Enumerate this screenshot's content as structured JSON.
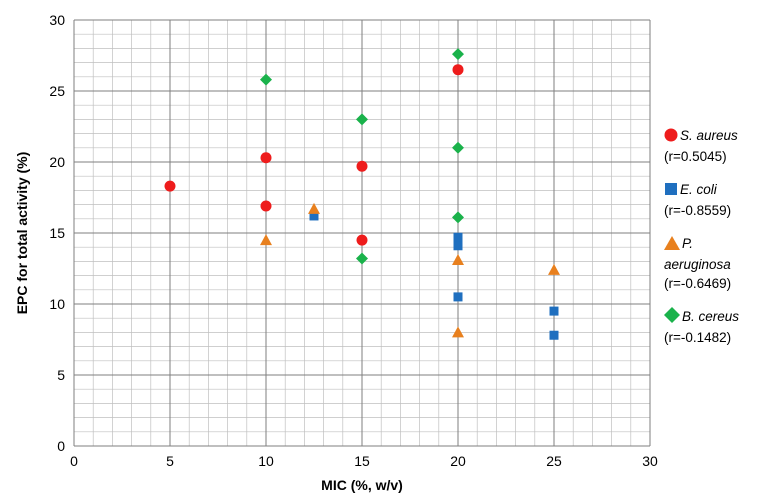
{
  "chart_data": {
    "type": "scatter",
    "title": "",
    "xlabel": "MIC (%, w/v)",
    "ylabel": "EPC for total activity (%)",
    "xlim": [
      0,
      30
    ],
    "ylim": [
      0,
      30
    ],
    "x_ticks": [
      0,
      5,
      10,
      15,
      20,
      25,
      30
    ],
    "y_ticks": [
      0,
      5,
      10,
      15,
      20,
      25,
      30
    ],
    "grid": true,
    "legend_position": "right",
    "series": [
      {
        "name": "S. aureus",
        "note": "(r=0.5045)",
        "marker": "circle",
        "color": "#ee1c1c",
        "points": [
          [
            5,
            18.3
          ],
          [
            10,
            20.3
          ],
          [
            10,
            16.9
          ],
          [
            15,
            19.7
          ],
          [
            15,
            14.5
          ],
          [
            20,
            26.5
          ]
        ]
      },
      {
        "name": "E. coli",
        "note": "(r=-0.8559)",
        "marker": "square",
        "color": "#1f6fbf",
        "points": [
          [
            12.5,
            16.2
          ],
          [
            20,
            14.7
          ],
          [
            20,
            14.1
          ],
          [
            20,
            10.5
          ],
          [
            25,
            9.5
          ],
          [
            25,
            7.8
          ]
        ]
      },
      {
        "name": "P. aeruginosa",
        "note": "(r=-0.6469)",
        "marker": "triangle",
        "color": "#e8801e",
        "points": [
          [
            10,
            14.5
          ],
          [
            12.5,
            16.7
          ],
          [
            20,
            13.1
          ],
          [
            20,
            8.0
          ],
          [
            25,
            12.4
          ]
        ]
      },
      {
        "name": "B. cereus",
        "note": "(r=-0.1482)",
        "marker": "diamond",
        "color": "#1ab24b",
        "points": [
          [
            10,
            25.8
          ],
          [
            15,
            23.0
          ],
          [
            15,
            13.2
          ],
          [
            20,
            27.6
          ],
          [
            20,
            21.0
          ],
          [
            20,
            16.1
          ]
        ]
      }
    ]
  }
}
